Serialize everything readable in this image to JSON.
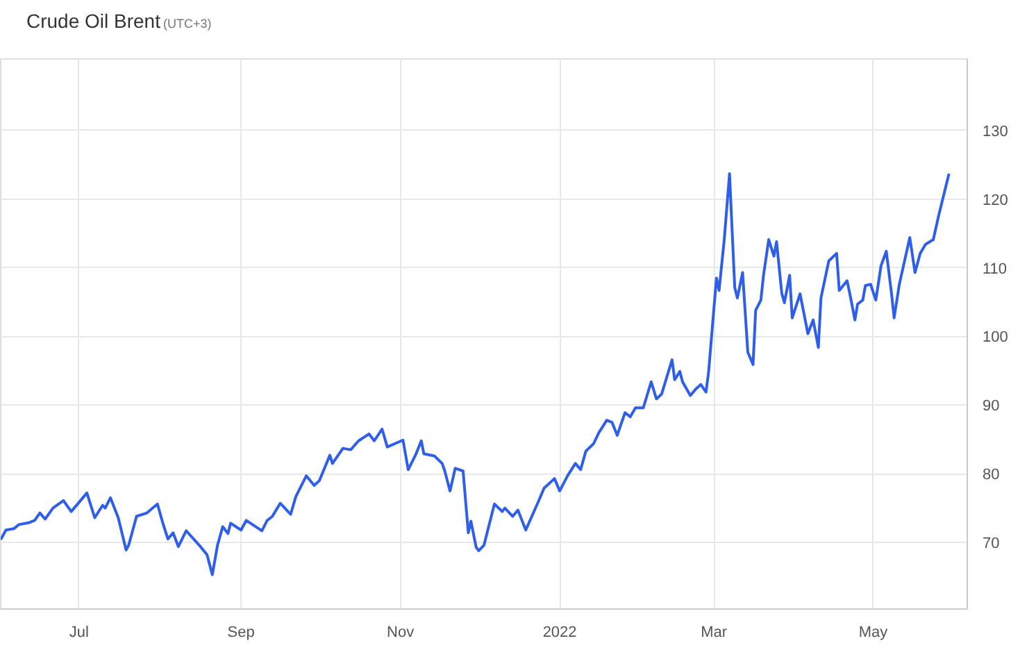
{
  "chart_data": {
    "type": "line",
    "title": "Crude Oil Brent",
    "subtitle": "(UTC+3)",
    "x": [
      "2021-06-01",
      "2021-06-03",
      "2021-06-06",
      "2021-06-08",
      "2021-06-12",
      "2021-06-14",
      "2021-06-16",
      "2021-06-18",
      "2021-06-21",
      "2021-06-25",
      "2021-06-28",
      "2021-07-04",
      "2021-07-07",
      "2021-07-10",
      "2021-07-11",
      "2021-07-13",
      "2021-07-16",
      "2021-07-19",
      "2021-07-20",
      "2021-07-23",
      "2021-07-27",
      "2021-07-31",
      "2021-08-02",
      "2021-08-04",
      "2021-08-06",
      "2021-08-08",
      "2021-08-11",
      "2021-08-16",
      "2021-08-19",
      "2021-08-21",
      "2021-08-23",
      "2021-08-25",
      "2021-08-27",
      "2021-08-28",
      "2021-09-01",
      "2021-09-03",
      "2021-09-07",
      "2021-09-09",
      "2021-09-11",
      "2021-09-13",
      "2021-09-16",
      "2021-09-20",
      "2021-09-22",
      "2021-09-26",
      "2021-09-29",
      "2021-10-01",
      "2021-10-05",
      "2021-10-06",
      "2021-10-10",
      "2021-10-13",
      "2021-10-16",
      "2021-10-20",
      "2021-10-22",
      "2021-10-25",
      "2021-10-27",
      "2021-11-02",
      "2021-11-04",
      "2021-11-07",
      "2021-11-09",
      "2021-11-10",
      "2021-11-14",
      "2021-11-17",
      "2021-11-18",
      "2021-11-20",
      "2021-11-22",
      "2021-11-25",
      "2021-11-27",
      "2021-11-28",
      "2021-11-30",
      "2021-12-01",
      "2021-12-03",
      "2021-12-07",
      "2021-12-10",
      "2021-12-11",
      "2021-12-14",
      "2021-12-16",
      "2021-12-19",
      "2021-12-24",
      "2021-12-26",
      "2021-12-30",
      "2022-01-01",
      "2022-01-04",
      "2022-01-07",
      "2022-01-09",
      "2022-01-11",
      "2022-01-14",
      "2022-01-16",
      "2022-01-19",
      "2022-01-21",
      "2022-01-23",
      "2022-01-26",
      "2022-01-28",
      "2022-01-30",
      "2022-02-02",
      "2022-02-05",
      "2022-02-07",
      "2022-02-09",
      "2022-02-13",
      "2022-02-14",
      "2022-02-16",
      "2022-02-17",
      "2022-02-20",
      "2022-02-22",
      "2022-02-24",
      "2022-02-26",
      "2022-02-27",
      "2022-03-02",
      "2022-03-03",
      "2022-03-05",
      "2022-03-07",
      "2022-03-09",
      "2022-03-10",
      "2022-03-12",
      "2022-03-14",
      "2022-03-16",
      "2022-03-17",
      "2022-03-19",
      "2022-03-20",
      "2022-03-22",
      "2022-03-24",
      "2022-03-25",
      "2022-03-27",
      "2022-03-28",
      "2022-03-30",
      "2022-03-31",
      "2022-04-03",
      "2022-04-06",
      "2022-04-08",
      "2022-04-10",
      "2022-04-11",
      "2022-04-14",
      "2022-04-17",
      "2022-04-18",
      "2022-04-21",
      "2022-04-22",
      "2022-04-24",
      "2022-04-25",
      "2022-04-27",
      "2022-04-28",
      "2022-04-30",
      "2022-05-02",
      "2022-05-04",
      "2022-05-06",
      "2022-05-08",
      "2022-05-09",
      "2022-05-11",
      "2022-05-15",
      "2022-05-17",
      "2022-05-19",
      "2022-05-21",
      "2022-05-24",
      "2022-05-26",
      "2022-05-30"
    ],
    "series": [
      {
        "color": "#2f5fe8",
        "values": [
          70.4,
          71.8,
          72.0,
          72.6,
          72.9,
          73.2,
          74.3,
          73.4,
          75.0,
          76.1,
          74.5,
          77.2,
          73.6,
          75.4,
          75.0,
          76.5,
          73.6,
          68.9,
          69.6,
          73.8,
          74.3,
          75.6,
          72.9,
          70.5,
          71.4,
          69.4,
          71.7,
          69.6,
          68.2,
          65.3,
          69.6,
          72.3,
          71.3,
          72.8,
          71.8,
          73.2,
          72.2,
          71.7,
          73.2,
          73.8,
          75.7,
          74.1,
          76.7,
          79.7,
          78.3,
          79.0,
          82.7,
          81.5,
          83.7,
          83.5,
          84.8,
          85.8,
          84.8,
          86.5,
          83.9,
          84.9,
          80.6,
          82.9,
          84.8,
          82.9,
          82.6,
          81.5,
          80.4,
          77.5,
          80.8,
          80.4,
          71.4,
          73.1,
          69.3,
          68.8,
          69.6,
          75.6,
          74.5,
          75.0,
          73.8,
          74.7,
          71.8,
          76.1,
          77.9,
          79.3,
          77.5,
          79.7,
          81.5,
          80.6,
          83.3,
          84.4,
          86.0,
          87.8,
          87.5,
          85.6,
          88.9,
          88.3,
          89.6,
          89.6,
          93.4,
          90.9,
          91.6,
          96.6,
          93.7,
          94.9,
          93.4,
          91.4,
          92.3,
          93.0,
          91.9,
          94.9,
          108.5,
          106.7,
          114.2,
          123.7,
          107.1,
          105.6,
          109.3,
          97.7,
          95.9,
          103.8,
          105.3,
          108.9,
          114.1,
          111.7,
          113.8,
          106.3,
          104.9,
          108.9,
          102.7,
          106.2,
          100.4,
          102.4,
          98.4,
          105.6,
          111.0,
          112.1,
          106.7,
          108.1,
          106.3,
          102.4,
          104.7,
          105.3,
          107.4,
          107.6,
          105.3,
          110.3,
          112.4,
          106.3,
          102.7,
          107.6,
          114.4,
          109.3,
          112.1,
          113.4,
          114.1,
          117.5,
          123.7
        ]
      }
    ],
    "xlim": [
      "2021-06-01",
      "2022-06-06"
    ],
    "xticks": [
      {
        "value": "2021-07-01",
        "label": "Jul"
      },
      {
        "value": "2021-09-01",
        "label": "Sep"
      },
      {
        "value": "2021-11-01",
        "label": "Nov"
      },
      {
        "value": "2022-01-01",
        "label": "2022"
      },
      {
        "value": "2022-03-01",
        "label": "Mar"
      },
      {
        "value": "2022-05-01",
        "label": "May"
      }
    ],
    "ylim": [
      60.3,
      140.4
    ],
    "yticks": [
      70,
      80,
      90,
      100,
      110,
      120,
      130
    ],
    "grid": true,
    "marker": "none",
    "line_style": "solid"
  }
}
